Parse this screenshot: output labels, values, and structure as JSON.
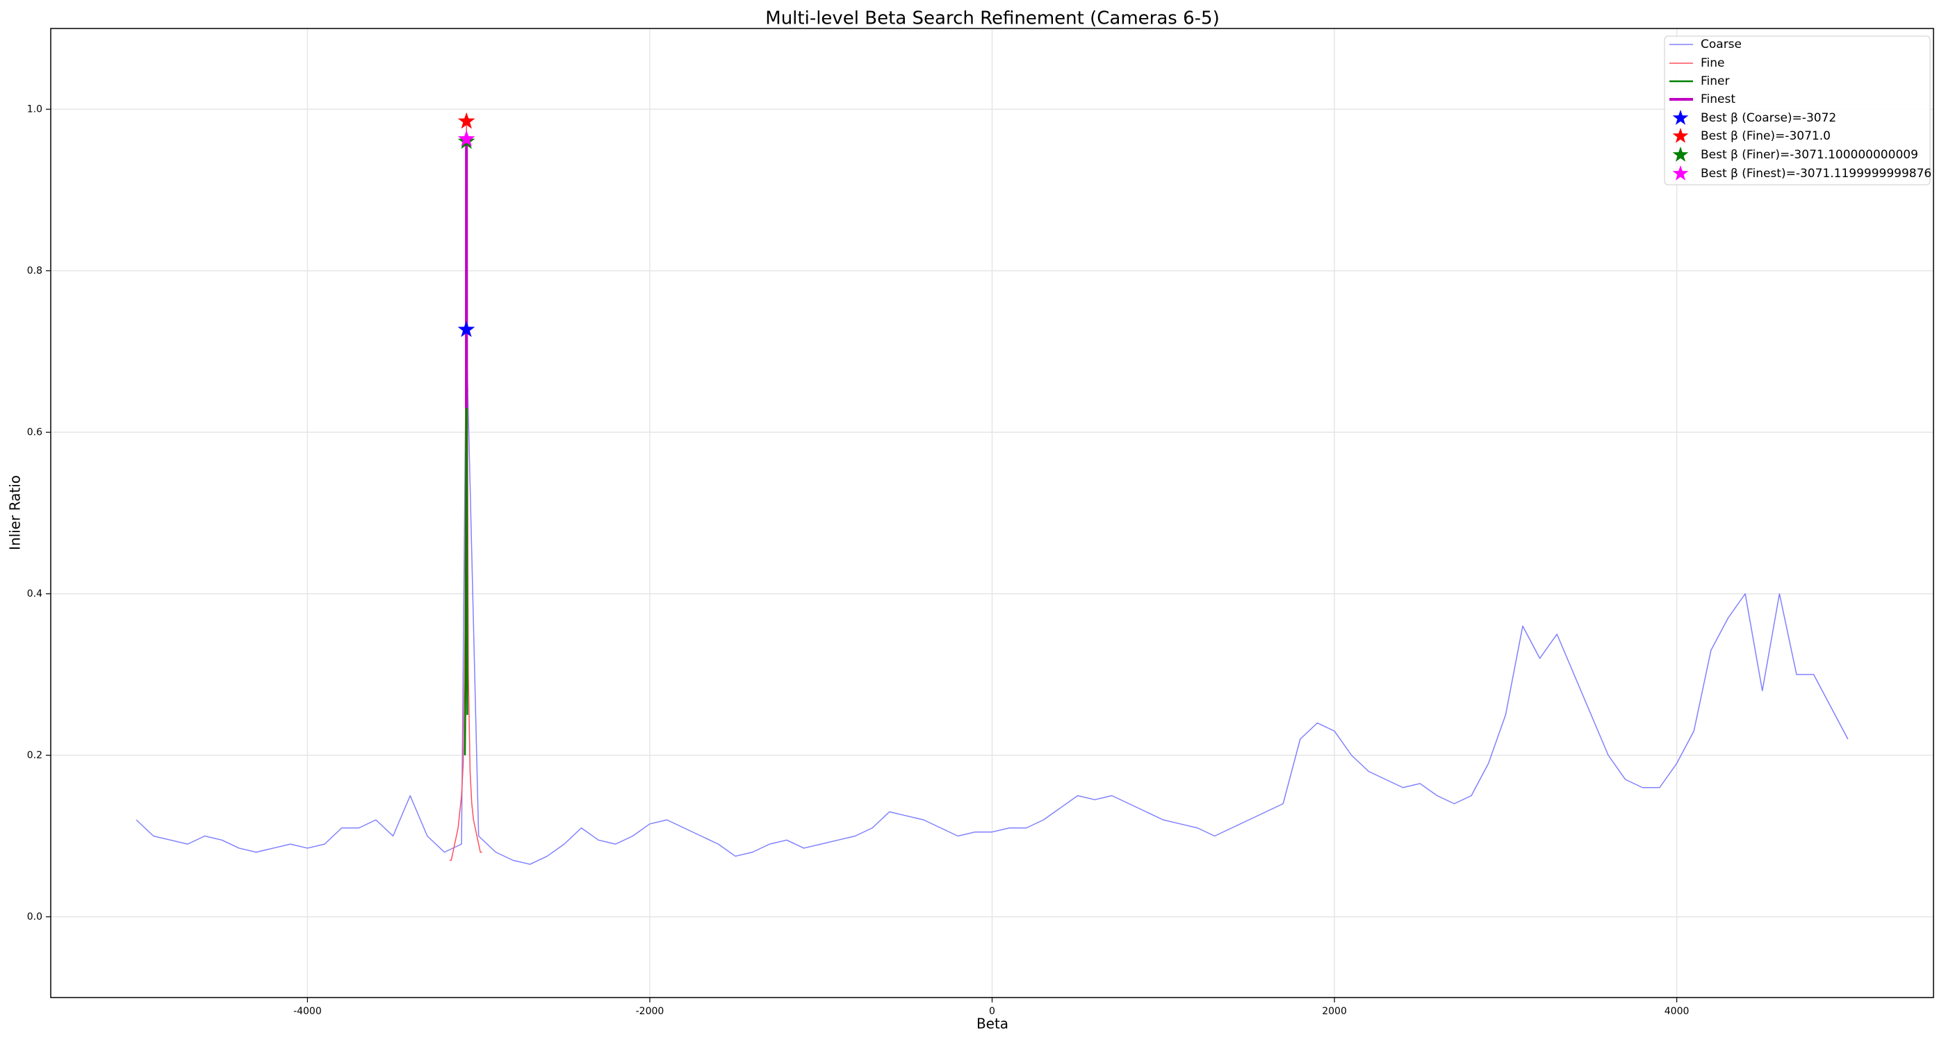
{
  "chart_data": {
    "type": "line",
    "title": "Multi-level Beta Search Refinement (Cameras 6-5)",
    "x_label": "Beta",
    "y_label": "Inlier Ratio",
    "xlim": [
      -5500,
      5500
    ],
    "ylim": [
      -0.1,
      1.1
    ],
    "xticks": [
      -4000,
      -2000,
      0,
      2000,
      4000
    ],
    "yticks": [
      {
        "value": 0,
        "label": "0.0"
      },
      0.2,
      0.4,
      0.6,
      0.8,
      {
        "value": 1,
        "label": "1.0"
      }
    ],
    "grid": true,
    "legend": "upper right",
    "series": [
      {
        "name": "Coarse",
        "color": "#8080ff",
        "x": [
          -5000,
          -4900,
          -4800,
          -4700,
          -4600,
          -4500,
          -4400,
          -4300,
          -4200,
          -4100,
          -4000,
          -3900,
          -3800,
          -3700,
          -3600,
          -3500,
          -3400,
          -3300,
          -3200,
          -3100,
          -3072,
          -3000,
          -2900,
          -2800,
          -2700,
          -2600,
          -2500,
          -2400,
          -2300,
          -2200,
          -2100,
          -2000,
          -1900,
          -1800,
          -1700,
          -1600,
          -1500,
          -1400,
          -1300,
          -1200,
          -1100,
          -1000,
          -900,
          -800,
          -700,
          -600,
          -500,
          -400,
          -300,
          -200,
          -100,
          0,
          100,
          200,
          300,
          400,
          500,
          600,
          700,
          800,
          900,
          1000,
          1100,
          1200,
          1300,
          1400,
          1500,
          1600,
          1700,
          1800,
          1900,
          2000,
          2100,
          2200,
          2300,
          2400,
          2500,
          2600,
          2700,
          2800,
          2900,
          3000,
          3100,
          3200,
          3300,
          3400,
          3500,
          3600,
          3700,
          3800,
          3900,
          4000,
          4100,
          4200,
          4300,
          4400,
          4500,
          4600,
          4700,
          4800,
          4900,
          5000
        ],
        "values": [
          0.12,
          0.1,
          0.095,
          0.09,
          0.1,
          0.095,
          0.085,
          0.08,
          0.085,
          0.09,
          0.085,
          0.09,
          0.11,
          0.11,
          0.12,
          0.1,
          0.15,
          0.1,
          0.08,
          0.09,
          0.727,
          0.1,
          0.08,
          0.07,
          0.065,
          0.075,
          0.09,
          0.11,
          0.095,
          0.09,
          0.1,
          0.115,
          0.12,
          0.11,
          0.1,
          0.09,
          0.075,
          0.08,
          0.09,
          0.095,
          0.085,
          0.09,
          0.095,
          0.1,
          0.11,
          0.13,
          0.125,
          0.12,
          0.11,
          0.1,
          0.105,
          0.105,
          0.11,
          0.11,
          0.12,
          0.135,
          0.15,
          0.145,
          0.15,
          0.14,
          0.13,
          0.12,
          0.115,
          0.11,
          0.1,
          0.11,
          0.12,
          0.13,
          0.14,
          0.22,
          0.24,
          0.23,
          0.2,
          0.18,
          0.17,
          0.16,
          0.165,
          0.15,
          0.14,
          0.15,
          0.19,
          0.25,
          0.36,
          0.32,
          0.35,
          0.3,
          0.25,
          0.2,
          0.17,
          0.16,
          0.16,
          0.19,
          0.23,
          0.33,
          0.37,
          0.4,
          0.28,
          0.4,
          0.3,
          0.3,
          0.26,
          0.22
        ]
      },
      {
        "name": "Fine",
        "color": "#ff4f5f",
        "x": [
          -3170,
          -3160,
          -3150,
          -3140,
          -3130,
          -3120,
          -3110,
          -3100,
          -3090,
          -3080,
          -3071,
          -3060,
          -3050,
          -3040,
          -3030,
          -3020,
          -3010,
          -3000,
          -2990,
          -2980
        ],
        "values": [
          0.07,
          0.07,
          0.08,
          0.09,
          0.1,
          0.11,
          0.13,
          0.15,
          0.19,
          0.35,
          0.985,
          0.3,
          0.18,
          0.14,
          0.12,
          0.11,
          0.1,
          0.09,
          0.08,
          0.08
        ]
      },
      {
        "name": "Finer",
        "color": "green",
        "x": [
          -3080,
          -3076,
          -3074,
          -3072,
          -3071.1,
          -3070,
          -3068,
          -3066
        ],
        "values": [
          0.2,
          0.3,
          0.5,
          0.75,
          0.96,
          0.7,
          0.4,
          0.25
        ]
      },
      {
        "name": "Finest",
        "color": "#c000c0",
        "x": [
          -3071.6,
          -3071.4,
          -3071.2,
          -3071.12,
          -3071.0,
          -3070.8,
          -3070.6
        ],
        "values": [
          0.63,
          0.8,
          0.93,
          0.963,
          0.92,
          0.8,
          0.65
        ]
      }
    ],
    "best": [
      {
        "name": "Best β (Coarse)=-3072",
        "color": "blue",
        "x": -3072,
        "y": 0.727
      },
      {
        "name": "Best β (Fine)=-3071.0",
        "color": "red",
        "x": -3071.0,
        "y": 0.985
      },
      {
        "name": "Best β (Finer)=-3071.100000000009",
        "color": "green",
        "x": -3071.1,
        "y": 0.96
      },
      {
        "name": "Best β (Finest)=-3071.1199999999876",
        "color": "magenta",
        "x": -3071.12,
        "y": 0.963
      }
    ]
  }
}
